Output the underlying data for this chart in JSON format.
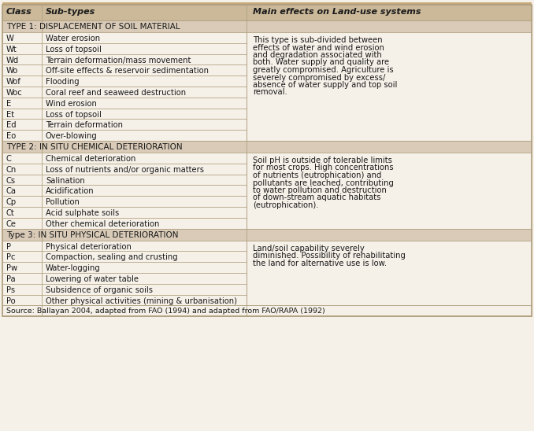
{
  "header": [
    "Class",
    "Sub-types",
    "Main effects on Land-use systems"
  ],
  "header_bg": "#cbb99a",
  "section_bg": "#d9cbb8",
  "row_bg": "#f5f0e8",
  "border_color": "#b0a080",
  "text_color": "#1a1a1a",
  "source_text": "Source: Ballayan 2004, adapted from FAO (1994) and adapted from FAO/RAPA (1992)",
  "top_border_color": "#c8a878",
  "sections": [
    {
      "label": "TYPE 1: DISPLACEMENT OF SOIL MATERIAL",
      "rows": [
        [
          "W",
          "Water erosion"
        ],
        [
          "Wt",
          "Loss of topsoil"
        ],
        [
          "Wd",
          "Terrain deformation/mass movement"
        ],
        [
          "Wo",
          "Off-site effects & reservoir sedimentation"
        ],
        [
          "Wof",
          "Flooding"
        ],
        [
          "Woc",
          "Coral reef and seaweed destruction"
        ],
        [
          "E",
          "Wind erosion"
        ],
        [
          "Et",
          "Loss of topsoil"
        ],
        [
          "Ed",
          "Terrain deformation"
        ],
        [
          "Eo",
          "Over-blowing"
        ]
      ],
      "effect": "This type is sub-divided between\neffects of water and wind erosion\nand degradation associated with\nboth. Water supply and quality are\ngreatly compromised. Agriculture is\nseverely compromised by excess/\nabsence of water supply and top soil\nremoval."
    },
    {
      "label": "TYPE 2: IN SITU CHEMICAL DETERIORATION",
      "rows": [
        [
          "C",
          "Chemical deterioration"
        ],
        [
          "Cn",
          "Loss of nutrients and/or organic matters"
        ],
        [
          "Cs",
          "Salination"
        ],
        [
          "Ca",
          "Acidification"
        ],
        [
          "Cp",
          "Pollution"
        ],
        [
          "Ct",
          "Acid sulphate soils"
        ],
        [
          "Ce",
          "Other chemical deterioration"
        ]
      ],
      "effect": "Soil pH is outside of tolerable limits\nfor most crops. High concentrations\nof nutrients (eutrophication) and\npollutants are leached, contributing\nto water pollution and destruction\nof down-stream aquatic habitats\n(eutrophication)."
    },
    {
      "label": "Type 3: IN SITU PHYSICAL DETERIORATION",
      "rows": [
        [
          "P",
          "Physical deterioration"
        ],
        [
          "Pc",
          "Compaction, sealing and crusting"
        ],
        [
          "Pw",
          "Water-logging"
        ],
        [
          "Pa",
          "Lowering of water table"
        ],
        [
          "Ps",
          "Subsidence of organic soils"
        ],
        [
          "Po",
          "Other physical activities (mining & urbanisation)"
        ]
      ],
      "effect": "Land/soil capability severely\ndiminished. Possibility of rehabilitating\nthe land for alternative use is low."
    }
  ]
}
